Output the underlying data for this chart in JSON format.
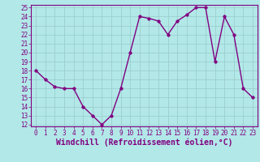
{
  "x": [
    0,
    1,
    2,
    3,
    4,
    5,
    6,
    7,
    8,
    9,
    10,
    11,
    12,
    13,
    14,
    15,
    16,
    17,
    18,
    19,
    20,
    21,
    22,
    23
  ],
  "y": [
    18,
    17,
    16.2,
    16,
    16,
    14,
    13,
    12,
    13,
    16,
    20,
    24,
    23.8,
    23.5,
    22,
    23.5,
    24.2,
    25,
    25,
    19,
    24,
    22,
    16,
    15
  ],
  "line_color": "#800080",
  "marker_color": "#800080",
  "bg_color": "#b2e8e8",
  "grid_color": "#9ecece",
  "xlabel": "Windchill (Refroidissement éolien,°C)",
  "xlabel_color": "#800080",
  "ylim": [
    12,
    25
  ],
  "xlim": [
    -0.5,
    23.5
  ],
  "yticks": [
    12,
    13,
    14,
    15,
    16,
    17,
    18,
    19,
    20,
    21,
    22,
    23,
    24,
    25
  ],
  "xticks": [
    0,
    1,
    2,
    3,
    4,
    5,
    6,
    7,
    8,
    9,
    10,
    11,
    12,
    13,
    14,
    15,
    16,
    17,
    18,
    19,
    20,
    21,
    22,
    23
  ],
  "tick_color": "#800080",
  "tick_fontsize": 5.5,
  "xlabel_fontsize": 7.0,
  "line_width": 1.0,
  "marker_size": 2.5
}
